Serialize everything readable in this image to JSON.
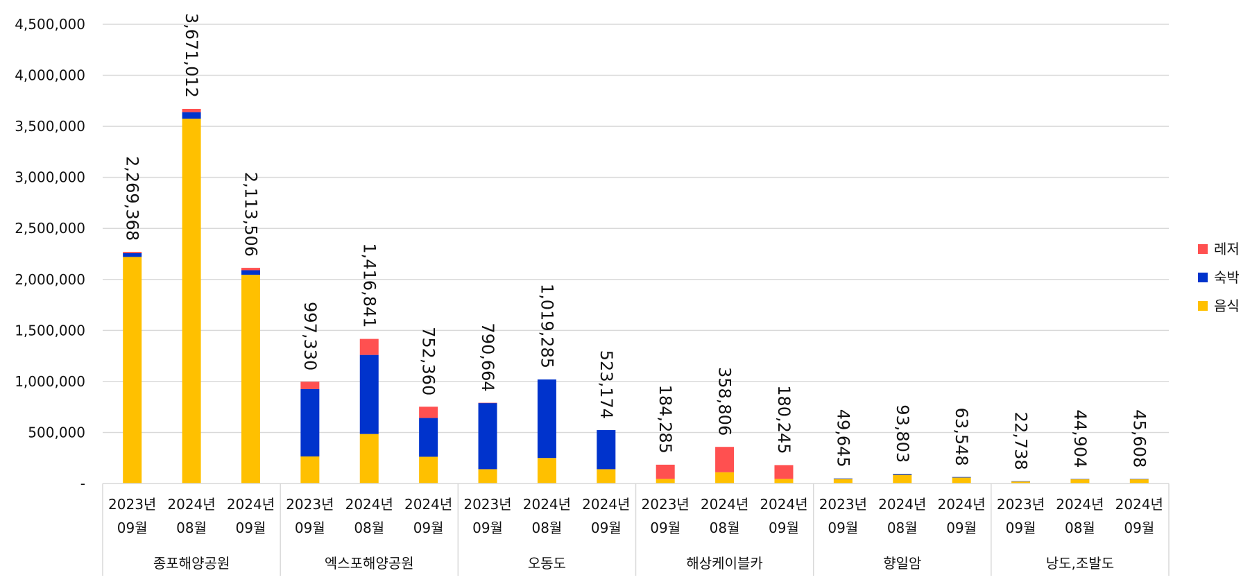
{
  "chart_data": {
    "type": "bar",
    "stacked": true,
    "title": "",
    "xlabel": "",
    "ylabel": "",
    "ylim": [
      0,
      4500000
    ],
    "yticks": [
      0,
      500000,
      1000000,
      1500000,
      2000000,
      2500000,
      3000000,
      3500000,
      4000000,
      4500000
    ],
    "ytick_labels": [
      "-",
      "500,000",
      "1,000,000",
      "1,500,000",
      "2,000,000",
      "2,500,000",
      "3,000,000",
      "3,500,000",
      "4,000,000",
      "4,500,000"
    ],
    "grid": true,
    "legend_position": "right",
    "groups": [
      {
        "name": "종포해양공원",
        "categories": [
          [
            "2023년",
            "09월"
          ],
          [
            "2024년",
            "08월"
          ],
          [
            "2024년",
            "09월"
          ]
        ]
      },
      {
        "name": "엑스포해양공원",
        "categories": [
          [
            "2023년",
            "09월"
          ],
          [
            "2024년",
            "08월"
          ],
          [
            "2024년",
            "09월"
          ]
        ]
      },
      {
        "name": "오동도",
        "categories": [
          [
            "2023년",
            "09월"
          ],
          [
            "2024년",
            "08월"
          ],
          [
            "2024년",
            "09월"
          ]
        ]
      },
      {
        "name": "해상케이블카",
        "categories": [
          [
            "2023년",
            "09월"
          ],
          [
            "2024년",
            "08월"
          ],
          [
            "2024년",
            "09월"
          ]
        ]
      },
      {
        "name": "향일암",
        "categories": [
          [
            "2023년",
            "09월"
          ],
          [
            "2024년",
            "08월"
          ],
          [
            "2024년",
            "09월"
          ]
        ]
      },
      {
        "name": "낭도,조발도",
        "categories": [
          [
            "2023년",
            "09월"
          ],
          [
            "2024년",
            "08월"
          ],
          [
            "2024년",
            "09월"
          ]
        ]
      }
    ],
    "series": [
      {
        "name": "음식",
        "color": "#FFC000",
        "values": [
          2220000,
          3575000,
          2045000,
          265000,
          485000,
          262000,
          140000,
          250000,
          140000,
          45000,
          110000,
          45000,
          45000,
          85000,
          58000,
          20000,
          42000,
          42000
        ]
      },
      {
        "name": "숙박",
        "color": "#0033CC",
        "values": [
          37000,
          64000,
          45000,
          660000,
          775000,
          380000,
          650000,
          769285,
          383174,
          0,
          0,
          0,
          4645,
          8803,
          5548,
          2738,
          2904,
          3608
        ]
      },
      {
        "name": "레저",
        "color": "#FF5050",
        "values": [
          12368,
          32012,
          23506,
          72330,
          156841,
          110360,
          664,
          0,
          0,
          139285,
          248806,
          135245,
          0,
          0,
          0,
          0,
          0,
          0
        ]
      }
    ],
    "totals": [
      2269368,
      3671012,
      2113506,
      997330,
      1416841,
      752360,
      790664,
      1019285,
      523174,
      184285,
      358806,
      180245,
      49645,
      93803,
      63548,
      22738,
      44904,
      45608
    ],
    "total_labels": [
      "2,269,368",
      "3,671,012",
      "2,113,506",
      "997,330",
      "1,416,841",
      "752,360",
      "790,664",
      "1,019,285",
      "523,174",
      "184,285",
      "358,806",
      "180,245",
      "49,645",
      "93,803",
      "63,548",
      "22,738",
      "44,904",
      "45,608"
    ],
    "legend_order": [
      "레저",
      "숙박",
      "음식"
    ]
  }
}
